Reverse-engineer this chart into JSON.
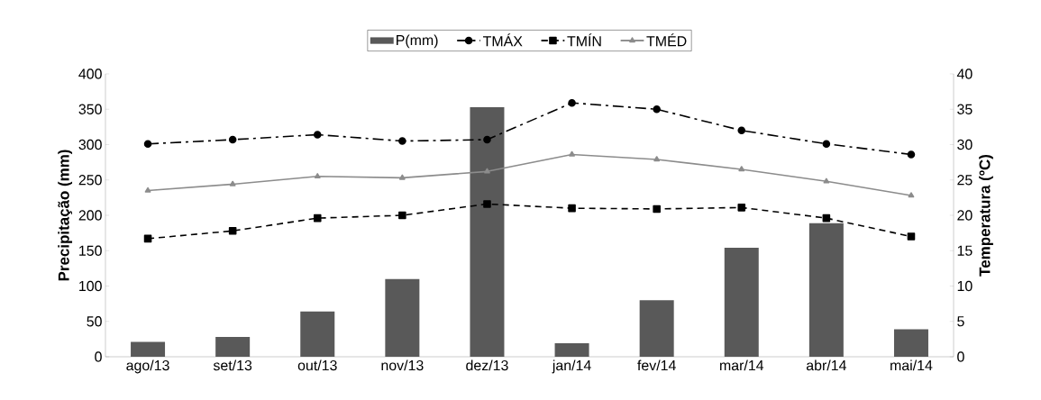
{
  "chart_data": {
    "type": "bar",
    "categories": [
      "ago/13",
      "set/13",
      "out/13",
      "nov/13",
      "dez/13",
      "jan/14",
      "fev/14",
      "mar/14",
      "abr/14",
      "mai/14"
    ],
    "ylabel": "Precipitação (mm)",
    "y2label": "Temperatura (ºC)",
    "ylim": [
      0,
      400
    ],
    "yticks": [
      0,
      50,
      100,
      150,
      200,
      250,
      300,
      350,
      400
    ],
    "y2lim": [
      0,
      40
    ],
    "y2ticks": [
      0,
      5,
      10,
      15,
      20,
      25,
      30,
      35,
      40
    ],
    "grid": false,
    "legend": "top",
    "series": [
      {
        "name": "P(mm)",
        "color": "#595959",
        "values": [
          21,
          28,
          64,
          110,
          353,
          19,
          80,
          154,
          189,
          39
        ]
      },
      {
        "name": "TMÁX",
        "type": "line",
        "axis": "y2",
        "color": "#000000",
        "marker": "circle",
        "line_style": "dashdot",
        "values": [
          30.1,
          30.7,
          31.4,
          30.5,
          30.7,
          35.9,
          35.0,
          32.0,
          30.1,
          28.6
        ]
      },
      {
        "name": "TMÍN",
        "type": "line",
        "axis": "y2",
        "color": "#000000",
        "marker": "square",
        "line_style": "dashed",
        "values": [
          16.7,
          17.8,
          19.6,
          20.0,
          21.6,
          21.0,
          20.9,
          21.1,
          19.6,
          17.0
        ]
      },
      {
        "name": "TMÉD",
        "type": "line",
        "axis": "y2",
        "color": "#8c8c8c",
        "marker": "triangle",
        "line_style": "solid",
        "values": [
          23.5,
          24.4,
          25.5,
          25.3,
          26.2,
          28.6,
          27.9,
          26.5,
          24.8,
          22.8
        ]
      }
    ]
  }
}
